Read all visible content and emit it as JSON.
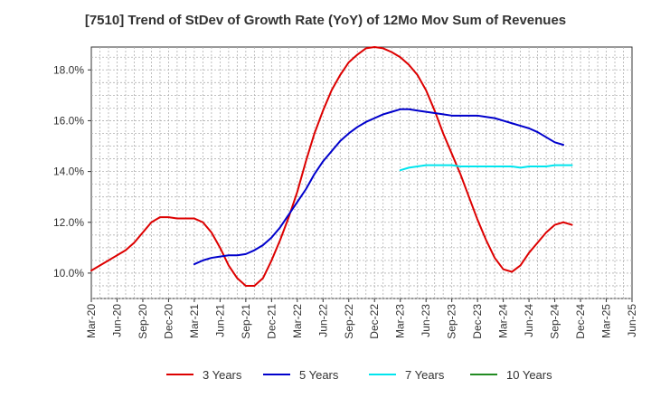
{
  "chart_data": {
    "type": "line",
    "title": "[7510]  Trend of StDev of Growth Rate (YoY) of 12Mo Mov Sum of Revenues",
    "xlabel": "",
    "ylabel": "",
    "ylim": [
      9.0,
      18.9
    ],
    "y_ticks": [
      10.0,
      12.0,
      14.0,
      16.0,
      18.0
    ],
    "y_tick_format": "%",
    "x_tick_labels": [
      "Mar-20",
      "Jun-20",
      "Sep-20",
      "Dec-20",
      "Mar-21",
      "Jun-21",
      "Sep-21",
      "Dec-21",
      "Mar-22",
      "Jun-22",
      "Sep-22",
      "Dec-22",
      "Mar-23",
      "Jun-23",
      "Sep-23",
      "Dec-23",
      "Mar-24",
      "Jun-24",
      "Sep-24",
      "Dec-24",
      "Mar-25",
      "Jun-25"
    ],
    "x_start": "2020-03",
    "grid": true,
    "legend_position": "bottom",
    "series": [
      {
        "name": "3 Years",
        "color": "#dd0000",
        "start_index": 0,
        "values": [
          10.1,
          10.3,
          10.5,
          10.7,
          10.9,
          11.2,
          11.6,
          12.0,
          12.2,
          12.2,
          12.15,
          12.15,
          12.15,
          12.0,
          11.6,
          11.0,
          10.3,
          9.8,
          9.5,
          9.5,
          9.8,
          10.5,
          11.3,
          12.2,
          13.2,
          14.4,
          15.5,
          16.4,
          17.2,
          17.8,
          18.3,
          18.6,
          18.85,
          18.9,
          18.85,
          18.7,
          18.5,
          18.2,
          17.8,
          17.2,
          16.4,
          15.5,
          14.7,
          13.9,
          13.0,
          12.1,
          11.3,
          10.6,
          10.15,
          10.05,
          10.3,
          10.8,
          11.2,
          11.6,
          11.9,
          12.0,
          11.9
        ]
      },
      {
        "name": "5 Years",
        "color": "#0000cc",
        "start_index": 12,
        "values": [
          10.35,
          10.5,
          10.6,
          10.65,
          10.7,
          10.7,
          10.75,
          10.9,
          11.1,
          11.4,
          11.8,
          12.3,
          12.8,
          13.3,
          13.9,
          14.4,
          14.8,
          15.2,
          15.5,
          15.75,
          15.95,
          16.1,
          16.25,
          16.35,
          16.45,
          16.45,
          16.4,
          16.35,
          16.3,
          16.25,
          16.2,
          16.2,
          16.2,
          16.2,
          16.15,
          16.1,
          16.0,
          15.9,
          15.8,
          15.7,
          15.55,
          15.35,
          15.15,
          15.05
        ]
      },
      {
        "name": "7 Years",
        "color": "#00e5ee",
        "start_index": 36,
        "values": [
          14.05,
          14.15,
          14.2,
          14.25,
          14.25,
          14.25,
          14.25,
          14.2,
          14.2,
          14.2,
          14.2,
          14.2,
          14.2,
          14.2,
          14.15,
          14.2,
          14.2,
          14.2,
          14.25,
          14.25,
          14.25
        ]
      },
      {
        "name": "10 Years",
        "color": "#228b22",
        "start_index": 0,
        "values": []
      }
    ]
  }
}
